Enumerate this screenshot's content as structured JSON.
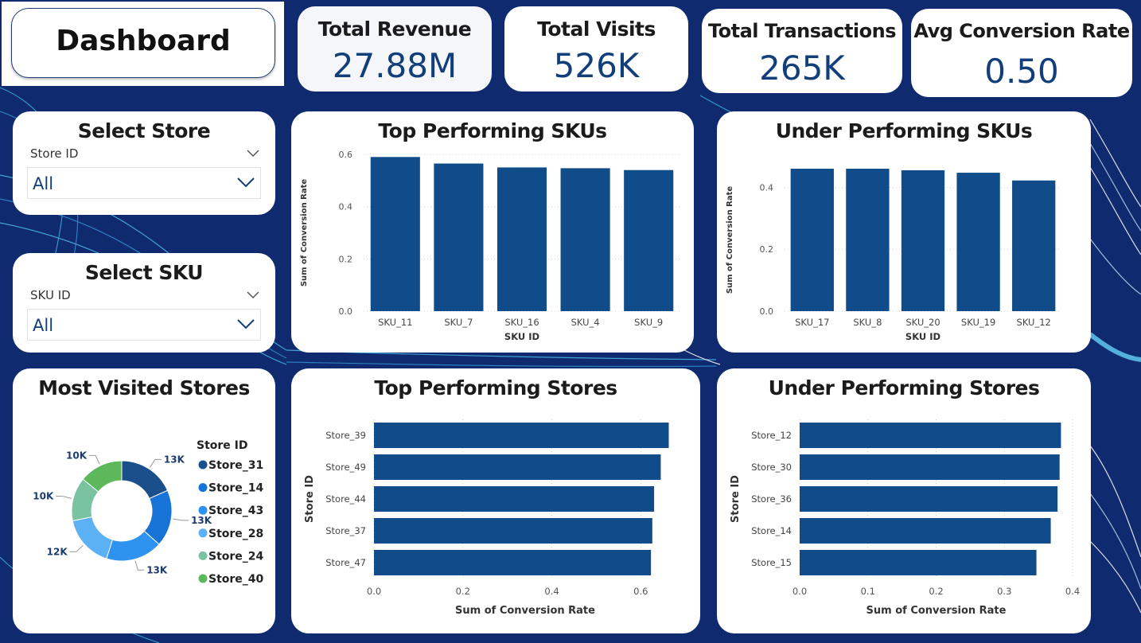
{
  "dashboard": {
    "title": "Dashboard"
  },
  "kpis": [
    {
      "title": "Total Revenue",
      "value": "27.88M"
    },
    {
      "title": "Total Visits",
      "value": "526K"
    },
    {
      "title": "Total Transactions",
      "value": "265K"
    },
    {
      "title": "Avg Conversion Rate",
      "value": "0.50"
    }
  ],
  "slicers": {
    "store": {
      "title": "Select Store",
      "field": "Store ID",
      "value": "All"
    },
    "sku": {
      "title": "Select SKU",
      "field": "SKU ID",
      "value": "All"
    }
  },
  "colors": {
    "bar": "#0f4c89",
    "text_dark": "#1b1b1b",
    "value_blue": "#123f7a",
    "background": "#0f2a6e"
  },
  "chart_data": [
    {
      "id": "top_skus",
      "type": "bar",
      "title": "Top Performing SKUs",
      "xlabel": "SKU ID",
      "ylabel": "Sum of Conversion Rate",
      "categories": [
        "SKU_11",
        "SKU_7",
        "SKU_16",
        "SKU_4",
        "SKU_9"
      ],
      "values": [
        0.59,
        0.565,
        0.55,
        0.547,
        0.54
      ],
      "ylim": [
        0,
        0.6
      ],
      "yticks": [
        "0.0",
        "0.2",
        "0.4",
        "0.6"
      ],
      "grid": true
    },
    {
      "id": "under_skus",
      "type": "bar",
      "title": "Under Performing SKUs",
      "xlabel": "SKU ID",
      "ylabel": "Sum of Conversion Rate",
      "categories": [
        "SKU_17",
        "SKU_8",
        "SKU_20",
        "SKU_19",
        "SKU_12"
      ],
      "values": [
        0.46,
        0.46,
        0.455,
        0.447,
        0.422
      ],
      "ylim": [
        0,
        0.46
      ],
      "yticks": [
        "0.0",
        "0.2",
        "0.4"
      ],
      "grid": true
    },
    {
      "id": "most_visited",
      "type": "pie",
      "title": "Most Visited Stores",
      "legend_title": "Store ID",
      "legend_position": "right",
      "categories": [
        "Store_31",
        "Store_14",
        "Store_43",
        "Store_28",
        "Store_24",
        "Store_40"
      ],
      "values": [
        13,
        13,
        13,
        12,
        10,
        10
      ],
      "labels": [
        "13K",
        "13K",
        "13K",
        "12K",
        "10K",
        "10K"
      ],
      "colors": [
        "#1a4f8b",
        "#1773d6",
        "#2e93ef",
        "#5cb1f5",
        "#79c3a1",
        "#5db85c"
      ]
    },
    {
      "id": "top_stores",
      "type": "bar",
      "orientation": "horizontal",
      "title": "Top Performing Stores",
      "xlabel": "Sum of Conversion Rate",
      "ylabel": "Store ID",
      "categories": [
        "Store_39",
        "Store_49",
        "Store_44",
        "Store_37",
        "Store_47"
      ],
      "values": [
        0.663,
        0.645,
        0.63,
        0.626,
        0.623
      ],
      "xlim": [
        0,
        0.68
      ],
      "xticks": [
        0,
        0.2,
        0.4,
        0.6
      ],
      "xtick_labels": [
        "0.0",
        "0.2",
        "0.4",
        "0.6"
      ],
      "grid": true
    },
    {
      "id": "under_stores",
      "type": "bar",
      "orientation": "horizontal",
      "title": "Under Performing Stores",
      "xlabel": "Sum of Conversion Rate",
      "ylabel": "Store ID",
      "categories": [
        "Store_12",
        "Store_30",
        "Store_36",
        "Store_14",
        "Store_15"
      ],
      "values": [
        0.383,
        0.381,
        0.378,
        0.368,
        0.347
      ],
      "xlim": [
        0,
        0.4
      ],
      "xticks": [
        0,
        0.1,
        0.2,
        0.3,
        0.4
      ],
      "xtick_labels": [
        "0.0",
        "0.1",
        "0.2",
        "0.3",
        "0.4"
      ],
      "grid": true
    }
  ]
}
